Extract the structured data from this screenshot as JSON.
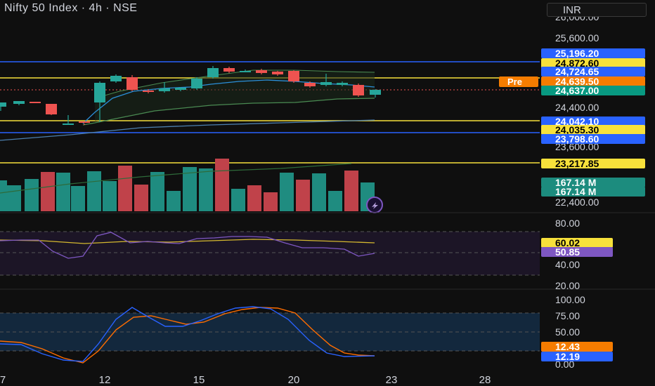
{
  "header": {
    "title": "Nifty 50 Index · 4h · NSE",
    "currency": "INR"
  },
  "colors": {
    "background": "#0f0f0f",
    "up": "#26a69a",
    "down": "#ef5350",
    "blue_line": "#2962ff",
    "yellow_line": "#f7e13b",
    "pre_label": "#f57c00",
    "rsi_line": "#7e57c2",
    "rsi_ma": "#d4b82f",
    "stoch_k": "#2962ff",
    "stoch_d": "#ff6d00"
  },
  "price_scale": {
    "ticks": [
      "26,000.00",
      "25,600.00",
      "24,400.00",
      "23,600.00",
      "22,400.00"
    ],
    "labels": [
      {
        "text": "25,196.20",
        "bg": "#2962ff",
        "fg": "#ffffff"
      },
      {
        "text": "24,872.60",
        "bg": "#f7e13b",
        "fg": "#000000"
      },
      {
        "text": "24,724.65",
        "bg": "#2962ff",
        "fg": "#ffffff"
      },
      {
        "text": "24,639.50",
        "bg": "#f57c00",
        "fg": "#ffffff"
      },
      {
        "text": "24,637.00",
        "bg": "#089981",
        "fg": "#ffffff"
      },
      {
        "text": "24,042.10",
        "bg": "#2962ff",
        "fg": "#ffffff"
      },
      {
        "text": "24,035.30",
        "bg": "#f7e13b",
        "fg": "#000000"
      },
      {
        "text": "23,798.60",
        "bg": "#2962ff",
        "fg": "#ffffff"
      },
      {
        "text": "23,217.85",
        "bg": "#f7e13b",
        "fg": "#000000"
      },
      {
        "text": "167.14 M",
        "bg": "#1c8c7e",
        "fg": "#ffffff"
      },
      {
        "text": "167.14 M",
        "bg": "#1c8c7e",
        "fg": "#ffffff"
      }
    ],
    "pre_label": "Pre"
  },
  "rsi": {
    "ticks": [
      "80.00",
      "40.00",
      "20.00"
    ],
    "labels": [
      {
        "text": "60.02",
        "bg": "#f7e13b",
        "fg": "#000000"
      },
      {
        "text": "50.85",
        "bg": "#7e57c2",
        "fg": "#ffffff"
      }
    ]
  },
  "stoch": {
    "ticks": [
      "100.00",
      "75.00",
      "50.00",
      "0.00"
    ],
    "labels": [
      {
        "text": "12.43",
        "bg": "#f57c00",
        "fg": "#ffffff"
      },
      {
        "text": "12.19",
        "bg": "#2962ff",
        "fg": "#ffffff"
      }
    ]
  },
  "time_axis": [
    "7",
    "12",
    "15",
    "20",
    "23",
    "28"
  ]
}
